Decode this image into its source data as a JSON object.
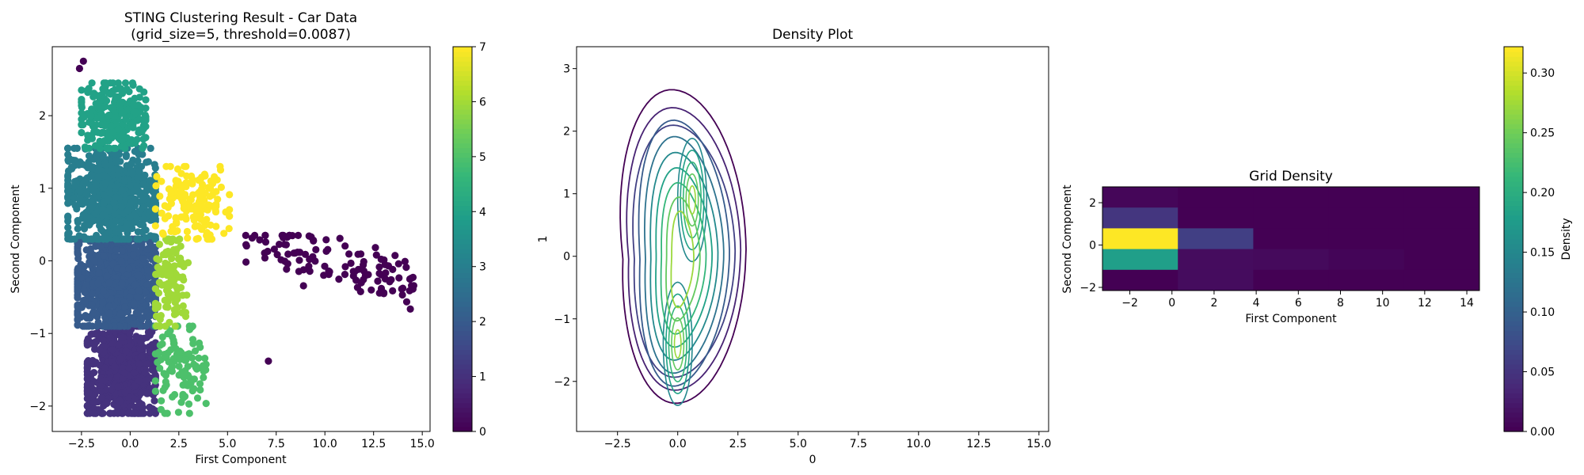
{
  "chart_data": [
    {
      "type": "scatter",
      "title": "STING Clustering Result - Car Data",
      "subtitle": "(grid_size=5, threshold=0.0087)",
      "xlabel": "First Component",
      "ylabel": "Second Component",
      "xlim": [
        -4.0,
        15.4
      ],
      "ylim": [
        -2.35,
        2.95
      ],
      "x_ticks": [
        -2.5,
        0.0,
        2.5,
        5.0,
        7.5,
        10.0,
        12.5,
        15.0
      ],
      "x_tick_labels": [
        "−2.5",
        "0.0",
        "2.5",
        "5.0",
        "7.5",
        "10.0",
        "12.5",
        "15.0"
      ],
      "y_ticks": [
        -2,
        -1,
        0,
        1,
        2
      ],
      "y_tick_labels": [
        "−2",
        "−1",
        "0",
        "1",
        "2"
      ],
      "colorscale": "viridis",
      "color_range": [
        0,
        7
      ],
      "colorbar_ticks": [
        0,
        1,
        2,
        3,
        4,
        5,
        6,
        7
      ],
      "clusters": [
        {
          "label": 0,
          "x_range": [
            5.9,
            14.6
          ],
          "y_range": [
            -0.8,
            0.35
          ],
          "approx_points": 120
        },
        {
          "label": 0,
          "note": "outliers",
          "points": [
            [
              -2.4,
              2.75
            ],
            [
              7.1,
              -1.38
            ],
            [
              -2.6,
              2.65
            ]
          ]
        },
        {
          "label": 1,
          "x_range": [
            -2.2,
            1.3
          ],
          "y_range": [
            -2.1,
            -0.9
          ],
          "approx_points": 700
        },
        {
          "label": 2,
          "x_range": [
            -2.7,
            1.3
          ],
          "y_range": [
            -0.9,
            0.3
          ],
          "approx_points": 900
        },
        {
          "label": 3,
          "x_range": [
            -3.2,
            1.3
          ],
          "y_range": [
            0.3,
            1.55
          ],
          "approx_points": 700
        },
        {
          "label": 4,
          "x_range": [
            -2.5,
            0.8
          ],
          "y_range": [
            1.55,
            2.45
          ],
          "approx_points": 260
        },
        {
          "label": 5,
          "x_range": [
            1.3,
            3.9
          ],
          "y_range": [
            -2.1,
            -0.9
          ],
          "approx_points": 110
        },
        {
          "label": 6,
          "x_range": [
            1.3,
            3.0
          ],
          "y_range": [
            -0.9,
            0.3
          ],
          "approx_points": 110
        },
        {
          "label": 7,
          "x_range": [
            1.3,
            5.1
          ],
          "y_range": [
            0.3,
            1.3
          ],
          "approx_points": 150
        }
      ]
    },
    {
      "type": "contour",
      "title": "Density Plot",
      "xlabel": "0",
      "ylabel": "1",
      "xlim": [
        -4.2,
        15.4
      ],
      "ylim": [
        -2.8,
        3.35
      ],
      "x_ticks": [
        -2.5,
        0.0,
        2.5,
        5.0,
        7.5,
        10.0,
        12.5,
        15.0
      ],
      "x_tick_labels": [
        "−2.5",
        "0.0",
        "2.5",
        "5.0",
        "7.5",
        "10.0",
        "12.5",
        "15.0"
      ],
      "y_ticks": [
        -2,
        -1,
        0,
        1,
        2,
        3
      ],
      "y_tick_labels": [
        "−2",
        "−1",
        "0",
        "1",
        "2",
        "3"
      ],
      "colorscale": "viridis",
      "levels": 10,
      "density_peaks": [
        {
          "x": 0.6,
          "y": 0.9
        },
        {
          "x": 0.0,
          "y": -1.4
        }
      ]
    },
    {
      "type": "heatmap",
      "title": "Grid Density",
      "xlabel": "First Component",
      "ylabel": "Second Component",
      "colorbar_label": "Density",
      "xlim": [
        -3.3,
        14.6
      ],
      "ylim": [
        -2.15,
        2.75
      ],
      "x_ticks": [
        -2,
        0,
        2,
        4,
        6,
        8,
        10,
        12,
        14
      ],
      "x_tick_labels": [
        "−2",
        "0",
        "2",
        "4",
        "6",
        "8",
        "10",
        "12",
        "14"
      ],
      "y_ticks": [
        -2,
        0,
        2
      ],
      "y_tick_labels": [
        "−2",
        "0",
        "2"
      ],
      "colorscale": "viridis",
      "color_range": [
        0,
        0.322
      ],
      "colorbar_ticks": [
        0.0,
        0.05,
        0.1,
        0.15,
        0.2,
        0.25,
        0.3
      ],
      "colorbar_tick_labels": [
        "0.00",
        "0.05",
        "0.10",
        "0.15",
        "0.20",
        "0.25",
        "0.30"
      ],
      "grid_columns": 5,
      "grid_rows": 5,
      "row_order": "top to bottom",
      "values": [
        [
          0.005,
          0.0,
          0.0,
          0.0,
          0.0
        ],
        [
          0.05,
          0.0,
          0.0,
          0.0,
          0.0
        ],
        [
          0.322,
          0.06,
          0.0,
          0.0,
          0.0
        ],
        [
          0.18,
          0.01,
          0.008,
          0.004,
          0.0
        ],
        [
          0.0,
          0.01,
          0.0,
          0.0,
          0.0
        ]
      ]
    }
  ]
}
